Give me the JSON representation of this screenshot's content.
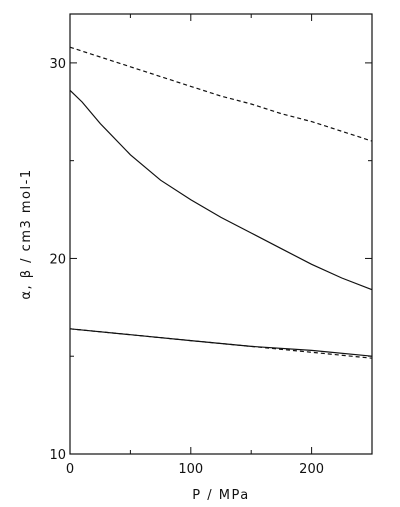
{
  "chart_data": {
    "type": "line",
    "xlabel": "P / MPa",
    "ylabel": "α, β / cm3 mol-1",
    "xlim": [
      0,
      250
    ],
    "ylim": [
      10,
      32.5
    ],
    "xticks": [
      0,
      100,
      200
    ],
    "yticks": [
      10,
      20,
      30
    ],
    "x_minor_step": 50,
    "y_minor_step": 5,
    "grid": false,
    "series": [
      {
        "style": "dashed",
        "x": [
          0,
          25,
          50,
          75,
          100,
          125,
          150,
          175,
          200,
          225,
          250
        ],
        "y": [
          30.8,
          30.3,
          29.8,
          29.3,
          28.8,
          28.3,
          27.9,
          27.4,
          27.0,
          26.5,
          26.0
        ]
      },
      {
        "style": "solid",
        "x": [
          0,
          10,
          25,
          50,
          75,
          100,
          125,
          150,
          175,
          200,
          225,
          250
        ],
        "y": [
          28.6,
          28.0,
          26.9,
          25.3,
          24.0,
          23.0,
          22.1,
          21.3,
          20.5,
          19.7,
          19.0,
          18.4
        ]
      },
      {
        "style": "solid",
        "x": [
          0,
          50,
          100,
          150,
          200,
          250
        ],
        "y": [
          16.4,
          16.1,
          15.8,
          15.5,
          15.3,
          15.0
        ]
      },
      {
        "style": "dashed",
        "x": [
          0,
          50,
          100,
          150,
          200,
          250
        ],
        "y": [
          16.4,
          16.1,
          15.8,
          15.5,
          15.2,
          14.9
        ]
      }
    ]
  }
}
